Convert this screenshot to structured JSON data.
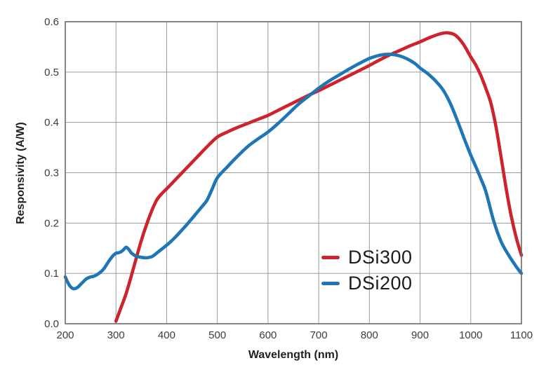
{
  "chart_data": {
    "type": "line",
    "title": "",
    "xlabel": "Wavelength (nm)",
    "ylabel": "Responsivity (A/W)",
    "xlim": [
      200,
      1100
    ],
    "ylim": [
      0,
      0.6
    ],
    "x_ticks": [
      200,
      300,
      400,
      500,
      600,
      700,
      800,
      900,
      1000,
      1100
    ],
    "x_tick_labels": [
      "200",
      "300",
      "400",
      "500",
      "600",
      "700",
      "800",
      "900",
      "1000",
      "1100"
    ],
    "y_ticks": [
      0,
      0.1,
      0.2,
      0.3,
      0.4,
      0.5,
      0.6
    ],
    "y_tick_labels": [
      "0.0",
      "0.1",
      "0.2",
      "0.3",
      "0.4",
      "0.5",
      "0.6"
    ],
    "grid": true,
    "grid_color": "#9a9a9a",
    "frame_color": "#6b6b6b",
    "tick_label_color": "#3c3c3c",
    "legend_position": "inside-lower-right",
    "series": [
      {
        "name": "DSi300",
        "color": "#cd232d",
        "points": [
          [
            300,
            0.005
          ],
          [
            310,
            0.032
          ],
          [
            320,
            0.06
          ],
          [
            330,
            0.094
          ],
          [
            340,
            0.13
          ],
          [
            350,
            0.165
          ],
          [
            360,
            0.196
          ],
          [
            370,
            0.223
          ],
          [
            380,
            0.245
          ],
          [
            390,
            0.258
          ],
          [
            400,
            0.268
          ],
          [
            420,
            0.289
          ],
          [
            440,
            0.31
          ],
          [
            460,
            0.331
          ],
          [
            480,
            0.352
          ],
          [
            500,
            0.371
          ],
          [
            520,
            0.381
          ],
          [
            540,
            0.39
          ],
          [
            560,
            0.398
          ],
          [
            580,
            0.406
          ],
          [
            600,
            0.414
          ],
          [
            620,
            0.424
          ],
          [
            640,
            0.434
          ],
          [
            660,
            0.444
          ],
          [
            680,
            0.454
          ],
          [
            700,
            0.463
          ],
          [
            720,
            0.473
          ],
          [
            740,
            0.483
          ],
          [
            760,
            0.493
          ],
          [
            780,
            0.503
          ],
          [
            800,
            0.513
          ],
          [
            820,
            0.524
          ],
          [
            840,
            0.534
          ],
          [
            860,
            0.543
          ],
          [
            880,
            0.552
          ],
          [
            900,
            0.56
          ],
          [
            920,
            0.569
          ],
          [
            940,
            0.576
          ],
          [
            955,
            0.578
          ],
          [
            970,
            0.573
          ],
          [
            985,
            0.556
          ],
          [
            1000,
            0.53
          ],
          [
            1010,
            0.514
          ],
          [
            1020,
            0.493
          ],
          [
            1030,
            0.467
          ],
          [
            1040,
            0.437
          ],
          [
            1050,
            0.39
          ],
          [
            1060,
            0.33
          ],
          [
            1070,
            0.268
          ],
          [
            1080,
            0.213
          ],
          [
            1090,
            0.17
          ],
          [
            1100,
            0.136
          ]
        ]
      },
      {
        "name": "DSi200",
        "color": "#1e76b7",
        "points": [
          [
            200,
            0.093
          ],
          [
            205,
            0.082
          ],
          [
            210,
            0.074
          ],
          [
            215,
            0.07
          ],
          [
            220,
            0.07
          ],
          [
            225,
            0.073
          ],
          [
            230,
            0.078
          ],
          [
            235,
            0.083
          ],
          [
            240,
            0.088
          ],
          [
            245,
            0.091
          ],
          [
            250,
            0.093
          ],
          [
            255,
            0.094
          ],
          [
            260,
            0.096
          ],
          [
            265,
            0.099
          ],
          [
            270,
            0.103
          ],
          [
            275,
            0.108
          ],
          [
            280,
            0.115
          ],
          [
            285,
            0.123
          ],
          [
            290,
            0.13
          ],
          [
            295,
            0.136
          ],
          [
            300,
            0.14
          ],
          [
            305,
            0.141
          ],
          [
            310,
            0.143
          ],
          [
            315,
            0.147
          ],
          [
            320,
            0.152
          ],
          [
            325,
            0.148
          ],
          [
            330,
            0.141
          ],
          [
            335,
            0.137
          ],
          [
            340,
            0.134
          ],
          [
            345,
            0.133
          ],
          [
            350,
            0.132
          ],
          [
            360,
            0.131
          ],
          [
            370,
            0.133
          ],
          [
            375,
            0.136
          ],
          [
            380,
            0.14
          ],
          [
            390,
            0.148
          ],
          [
            400,
            0.156
          ],
          [
            410,
            0.165
          ],
          [
            420,
            0.175
          ],
          [
            430,
            0.186
          ],
          [
            440,
            0.197
          ],
          [
            450,
            0.209
          ],
          [
            460,
            0.221
          ],
          [
            470,
            0.233
          ],
          [
            480,
            0.246
          ],
          [
            490,
            0.268
          ],
          [
            500,
            0.29
          ],
          [
            520,
            0.312
          ],
          [
            540,
            0.333
          ],
          [
            560,
            0.352
          ],
          [
            580,
            0.367
          ],
          [
            600,
            0.381
          ],
          [
            620,
            0.398
          ],
          [
            640,
            0.417
          ],
          [
            660,
            0.436
          ],
          [
            680,
            0.452
          ],
          [
            700,
            0.468
          ],
          [
            720,
            0.482
          ],
          [
            740,
            0.494
          ],
          [
            760,
            0.506
          ],
          [
            780,
            0.517
          ],
          [
            800,
            0.527
          ],
          [
            815,
            0.532
          ],
          [
            830,
            0.535
          ],
          [
            845,
            0.535
          ],
          [
            860,
            0.532
          ],
          [
            875,
            0.526
          ],
          [
            890,
            0.517
          ],
          [
            900,
            0.508
          ],
          [
            915,
            0.497
          ],
          [
            930,
            0.483
          ],
          [
            945,
            0.465
          ],
          [
            960,
            0.437
          ],
          [
            975,
            0.4
          ],
          [
            990,
            0.36
          ],
          [
            1000,
            0.335
          ],
          [
            1010,
            0.312
          ],
          [
            1020,
            0.288
          ],
          [
            1030,
            0.262
          ],
          [
            1045,
            0.205
          ],
          [
            1060,
            0.163
          ],
          [
            1075,
            0.136
          ],
          [
            1090,
            0.113
          ],
          [
            1100,
            0.1
          ]
        ]
      }
    ]
  },
  "legend": {
    "items": [
      {
        "label": "DSi300",
        "color": "#cd232d"
      },
      {
        "label": "DSi200",
        "color": "#1e76b7"
      }
    ]
  }
}
